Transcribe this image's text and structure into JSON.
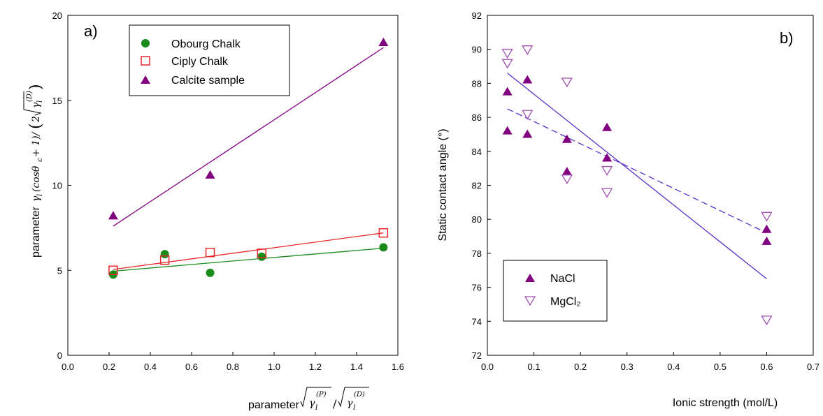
{
  "chart_data": [
    {
      "type": "scatter",
      "panel_label": "a)",
      "xlabel_prefix": "parameter",
      "ylabel_prefix": "parameter",
      "xlim": [
        0.0,
        1.6
      ],
      "ylim": [
        0,
        20
      ],
      "xticks": [
        "0.0",
        "0.2",
        "0.4",
        "0.6",
        "0.8",
        "1.0",
        "1.2",
        "1.4",
        "1.6"
      ],
      "yticks": [
        "0",
        "5",
        "10",
        "15",
        "20"
      ],
      "legend_position": "top-center",
      "series": [
        {
          "name": "Obourg Chalk",
          "marker": "filled-circle",
          "color": "#1a8a1a",
          "x": [
            0.22,
            0.47,
            0.69,
            0.94,
            1.53
          ],
          "y": [
            4.75,
            5.95,
            4.85,
            5.8,
            6.35
          ],
          "fit": [
            [
              0.22,
              4.95
            ],
            [
              1.53,
              6.3
            ]
          ]
        },
        {
          "name": "Ciply Chalk",
          "marker": "open-square",
          "color": "#e8262a",
          "x": [
            0.22,
            0.47,
            0.69,
            0.94,
            1.53
          ],
          "y": [
            5.0,
            5.6,
            6.05,
            6.0,
            7.2
          ],
          "fit": [
            [
              0.22,
              5.05
            ],
            [
              1.53,
              7.2
            ]
          ]
        },
        {
          "name": "Calcite sample",
          "marker": "filled-triangle",
          "color": "#800080",
          "x": [
            0.22,
            0.69,
            1.53
          ],
          "y": [
            8.2,
            10.6,
            18.4
          ],
          "fit": [
            [
              0.22,
              7.6
            ],
            [
              1.53,
              18.1
            ]
          ]
        }
      ]
    },
    {
      "type": "scatter",
      "panel_label": "b)",
      "xlabel": "Ionic strength (mol/L)",
      "ylabel": "Static contact angle (°)",
      "xlim": [
        0.0,
        0.7
      ],
      "ylim": [
        72,
        92
      ],
      "xticks": [
        "0.0",
        "0.1",
        "0.2",
        "0.3",
        "0.4",
        "0.5",
        "0.6",
        "0.7"
      ],
      "yticks": [
        "72",
        "74",
        "76",
        "78",
        "80",
        "82",
        "84",
        "86",
        "88",
        "90",
        "92"
      ],
      "legend_position": "bottom-left",
      "series": [
        {
          "name": "NaCl",
          "marker": "filled-triangle",
          "color": "#800080",
          "line_color": "#5a2ec8",
          "line_style": "solid",
          "x": [
            0.043,
            0.043,
            0.086,
            0.086,
            0.171,
            0.171,
            0.257,
            0.257,
            0.6,
            0.6
          ],
          "y": [
            87.5,
            85.2,
            88.2,
            85.0,
            84.7,
            82.8,
            85.4,
            83.6,
            79.4,
            78.7
          ],
          "fit": [
            [
              0.043,
              88.6
            ],
            [
              0.6,
              76.5
            ]
          ]
        },
        {
          "name": "MgCl₂",
          "marker": "open-inverted-triangle",
          "color": "#a050b0",
          "line_color": "#5a2ec8",
          "line_style": "dashed",
          "x": [
            0.043,
            0.043,
            0.086,
            0.086,
            0.171,
            0.171,
            0.257,
            0.257,
            0.6,
            0.6
          ],
          "y": [
            89.8,
            89.2,
            90.0,
            86.2,
            88.1,
            82.4,
            82.9,
            81.6,
            80.2,
            74.1
          ],
          "fit": [
            [
              0.043,
              86.5
            ],
            [
              0.6,
              79.2
            ]
          ]
        }
      ]
    }
  ]
}
